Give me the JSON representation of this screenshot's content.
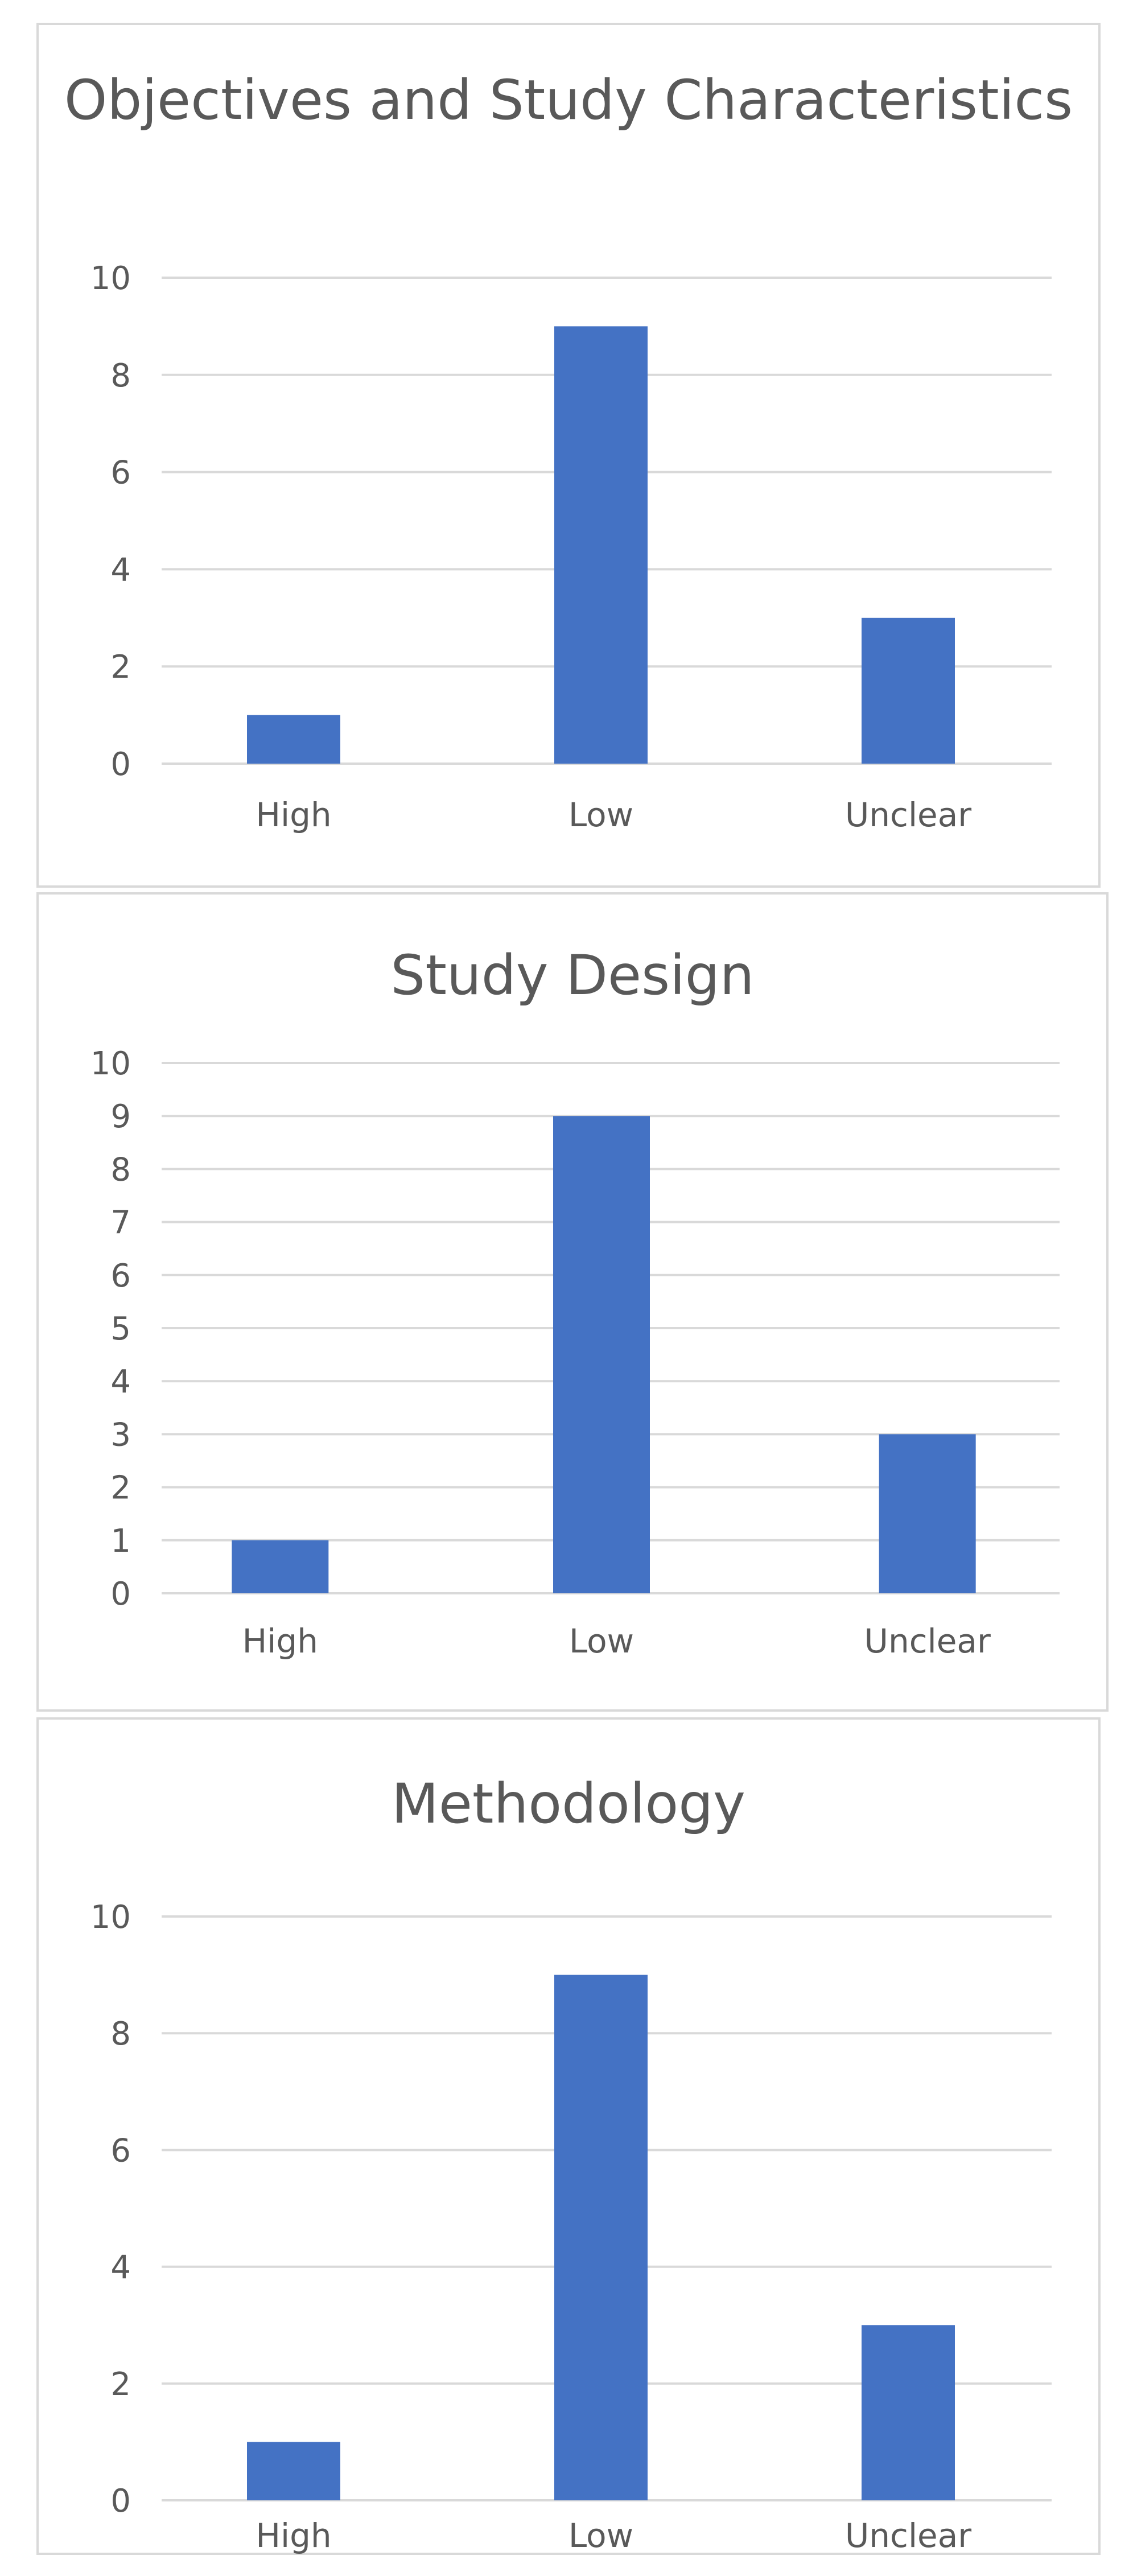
{
  "chart_data": [
    {
      "type": "bar",
      "title": "Objectives and Study Characteristics",
      "categories": [
        "High",
        "Low",
        "Unclear"
      ],
      "values": [
        1,
        9,
        3
      ],
      "ylim": [
        0,
        10
      ],
      "yticks": [
        0,
        2,
        4,
        6,
        8,
        10
      ],
      "color": "#4472c4",
      "grid": true,
      "legend": "none"
    },
    {
      "type": "bar",
      "title": "Study Design",
      "categories": [
        "High",
        "Low",
        "Unclear"
      ],
      "values": [
        1,
        9,
        3
      ],
      "ylim": [
        0,
        10
      ],
      "yticks": [
        0,
        1,
        2,
        3,
        4,
        5,
        6,
        7,
        8,
        9,
        10
      ],
      "color": "#4472c4",
      "grid": true,
      "legend": "none"
    },
    {
      "type": "bar",
      "title": "Methodology",
      "categories": [
        "High",
        "Low",
        "Unclear"
      ],
      "values": [
        1,
        9,
        3
      ],
      "ylim": [
        0,
        10
      ],
      "yticks": [
        0,
        2,
        4,
        6,
        8,
        10
      ],
      "color": "#4472c4",
      "grid": true,
      "legend": "none"
    }
  ]
}
